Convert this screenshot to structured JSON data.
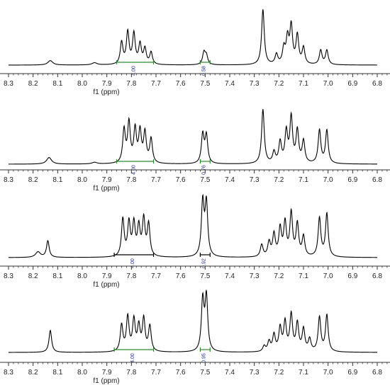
{
  "colors": {
    "trace": "#000000",
    "axis": "#333333",
    "integral_bracket": "#2e8b2e",
    "integral_bracket_dark": "#000000",
    "integral_label": "#1a2a8a",
    "text": "#222222"
  },
  "chart_data": [
    {
      "type": "line",
      "xlabel": "f1 (ppm)",
      "xlim": [
        8.3,
        6.8
      ],
      "x_reversed": true,
      "ticks": [
        "8.3",
        "8.2",
        "8.1",
        "8.0",
        "7.9",
        "7.8",
        "7.7",
        "7.6",
        "7.5",
        "7.4",
        "7.3",
        "7.2",
        "7.1",
        "7.0",
        "6.9",
        "6.8"
      ],
      "peaks": [
        {
          "ppm": 8.13,
          "rel": 0.08
        },
        {
          "ppm": 7.95,
          "rel": 0.04
        },
        {
          "ppm": 7.84,
          "rel": 0.4
        },
        {
          "ppm": 7.815,
          "rel": 0.58
        },
        {
          "ppm": 7.79,
          "rel": 0.55
        },
        {
          "ppm": 7.765,
          "rel": 0.36
        },
        {
          "ppm": 7.745,
          "rel": 0.28
        },
        {
          "ppm": 7.72,
          "rel": 0.22
        },
        {
          "ppm": 7.505,
          "rel": 0.22
        },
        {
          "ppm": 7.495,
          "rel": 0.16
        },
        {
          "ppm": 7.265,
          "rel": 1.0
        },
        {
          "ppm": 7.21,
          "rel": 0.18
        },
        {
          "ppm": 7.18,
          "rel": 0.28
        },
        {
          "ppm": 7.165,
          "rel": 0.45
        },
        {
          "ppm": 7.15,
          "rel": 0.68
        },
        {
          "ppm": 7.125,
          "rel": 0.52
        },
        {
          "ppm": 7.1,
          "rel": 0.3
        },
        {
          "ppm": 7.03,
          "rel": 0.26
        },
        {
          "ppm": 7.005,
          "rel": 0.26
        }
      ],
      "integrals": [
        {
          "from": 7.86,
          "to": 7.71,
          "label": "4.00",
          "style": "green"
        },
        {
          "from": 7.52,
          "to": 7.48,
          "label": "0.58",
          "style": "green"
        }
      ]
    },
    {
      "type": "line",
      "xlabel": "f1 (ppm)",
      "xlim": [
        8.3,
        6.8
      ],
      "x_reversed": true,
      "ticks": [
        "8.3",
        "8.2",
        "8.1",
        "8.0",
        "7.9",
        "7.8",
        "7.7",
        "7.6",
        "7.5",
        "7.4",
        "7.3",
        "7.2",
        "7.1",
        "7.0",
        "6.9",
        "6.8"
      ],
      "peaks": [
        {
          "ppm": 8.135,
          "rel": 0.12
        },
        {
          "ppm": 7.95,
          "rel": 0.03
        },
        {
          "ppm": 7.83,
          "rel": 0.6
        },
        {
          "ppm": 7.81,
          "rel": 0.72
        },
        {
          "ppm": 7.785,
          "rel": 0.6
        },
        {
          "ppm": 7.765,
          "rel": 0.56
        },
        {
          "ppm": 7.745,
          "rel": 0.54
        },
        {
          "ppm": 7.72,
          "rel": 0.44
        },
        {
          "ppm": 7.51,
          "rel": 0.52
        },
        {
          "ppm": 7.495,
          "rel": 0.5
        },
        {
          "ppm": 7.265,
          "rel": 0.98
        },
        {
          "ppm": 7.22,
          "rel": 0.2
        },
        {
          "ppm": 7.195,
          "rel": 0.38
        },
        {
          "ppm": 7.17,
          "rel": 0.56
        },
        {
          "ppm": 7.15,
          "rel": 0.82
        },
        {
          "ppm": 7.125,
          "rel": 0.58
        },
        {
          "ppm": 7.1,
          "rel": 0.4
        },
        {
          "ppm": 7.035,
          "rel": 0.6
        },
        {
          "ppm": 7.005,
          "rel": 0.6
        }
      ],
      "integrals": [
        {
          "from": 7.86,
          "to": 7.71,
          "label": "4.00",
          "style": "green"
        },
        {
          "from": 7.52,
          "to": 7.48,
          "label": "0.76",
          "style": "green"
        }
      ]
    },
    {
      "type": "line",
      "xlabel": "f1 (ppm)",
      "xlim": [
        8.3,
        6.8
      ],
      "x_reversed": true,
      "ticks": [
        "8.3",
        "8.2",
        "8.1",
        "8.0",
        "7.9",
        "7.8",
        "7.7",
        "7.6",
        "7.5",
        "7.4",
        "7.3",
        "7.2",
        "7.1",
        "7.0",
        "6.9",
        "6.8"
      ],
      "peaks": [
        {
          "ppm": 8.14,
          "rel": 0.3
        },
        {
          "ppm": 8.18,
          "rel": 0.1
        },
        {
          "ppm": 7.835,
          "rel": 0.68
        },
        {
          "ppm": 7.81,
          "rel": 0.6
        },
        {
          "ppm": 7.79,
          "rel": 0.58
        },
        {
          "ppm": 7.77,
          "rel": 0.52
        },
        {
          "ppm": 7.75,
          "rel": 0.66
        },
        {
          "ppm": 7.73,
          "rel": 0.58
        },
        {
          "ppm": 7.51,
          "rel": 0.98
        },
        {
          "ppm": 7.495,
          "rel": 0.96
        },
        {
          "ppm": 7.27,
          "rel": 0.22
        },
        {
          "ppm": 7.24,
          "rel": 0.26
        },
        {
          "ppm": 7.22,
          "rel": 0.4
        },
        {
          "ppm": 7.195,
          "rel": 0.5
        },
        {
          "ppm": 7.175,
          "rel": 0.6
        },
        {
          "ppm": 7.15,
          "rel": 0.78
        },
        {
          "ppm": 7.125,
          "rel": 0.58
        },
        {
          "ppm": 7.1,
          "rel": 0.36
        },
        {
          "ppm": 7.035,
          "rel": 0.7
        },
        {
          "ppm": 7.005,
          "rel": 0.78
        }
      ],
      "integrals": [
        {
          "from": 7.87,
          "to": 7.71,
          "label": "4.00",
          "style": "dark"
        },
        {
          "from": 7.52,
          "to": 7.48,
          "label": "0.92",
          "style": "dark"
        }
      ]
    },
    {
      "type": "line",
      "xlabel": "f1 (ppm)",
      "xlim": [
        8.3,
        6.8
      ],
      "x_reversed": true,
      "ticks": [
        "8.3",
        "8.2",
        "8.1",
        "8.0",
        "7.9",
        "7.8",
        "7.7",
        "7.6",
        "7.5",
        "7.4",
        "7.3",
        "7.2",
        "7.1",
        "7.0",
        "6.9",
        "6.8"
      ],
      "peaks": [
        {
          "ppm": 8.13,
          "rel": 0.4
        },
        {
          "ppm": 7.84,
          "rel": 0.48
        },
        {
          "ppm": 7.815,
          "rel": 0.62
        },
        {
          "ppm": 7.79,
          "rel": 0.56
        },
        {
          "ppm": 7.77,
          "rel": 0.44
        },
        {
          "ppm": 7.75,
          "rel": 0.58
        },
        {
          "ppm": 7.725,
          "rel": 0.46
        },
        {
          "ppm": 7.51,
          "rel": 0.92
        },
        {
          "ppm": 7.495,
          "rel": 0.98
        },
        {
          "ppm": 7.26,
          "rel": 0.1
        },
        {
          "ppm": 7.24,
          "rel": 0.18
        },
        {
          "ppm": 7.22,
          "rel": 0.3
        },
        {
          "ppm": 7.195,
          "rel": 0.42
        },
        {
          "ppm": 7.175,
          "rel": 0.52
        },
        {
          "ppm": 7.15,
          "rel": 0.66
        },
        {
          "ppm": 7.125,
          "rel": 0.5
        },
        {
          "ppm": 7.1,
          "rel": 0.4
        },
        {
          "ppm": 7.075,
          "rel": 0.22
        },
        {
          "ppm": 7.035,
          "rel": 0.62
        },
        {
          "ppm": 7.005,
          "rel": 0.66
        }
      ],
      "integrals": [
        {
          "from": 7.87,
          "to": 7.71,
          "label": "4.00",
          "style": "green"
        },
        {
          "from": 7.52,
          "to": 7.48,
          "label": "0.95",
          "style": "green"
        }
      ]
    }
  ]
}
